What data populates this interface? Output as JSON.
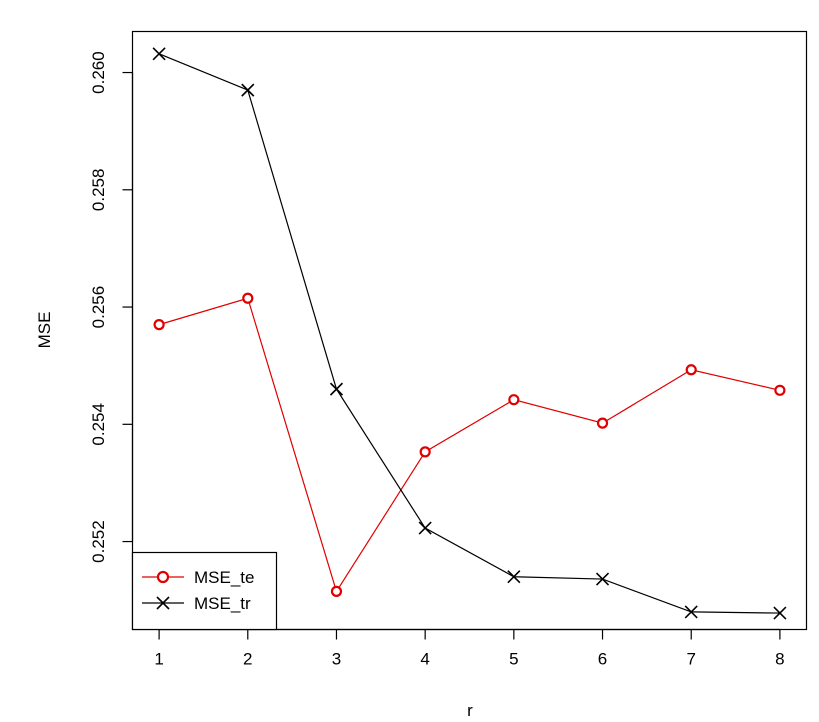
{
  "chart_data": {
    "type": "line",
    "title": "",
    "xlabel": "r",
    "ylabel": "MSE",
    "x": [
      1,
      2,
      3,
      4,
      5,
      6,
      7,
      8
    ],
    "x_ticks": [
      "1",
      "2",
      "3",
      "4",
      "5",
      "6",
      "7",
      "8"
    ],
    "y_ticks": [
      "0.252",
      "0.254",
      "0.256",
      "0.258",
      "0.260"
    ],
    "y_tick_values": [
      0.252,
      0.254,
      0.256,
      0.258,
      0.26
    ],
    "xlim": [
      0.7,
      8.3
    ],
    "ylim": [
      0.2505,
      0.2607
    ],
    "grid": false,
    "legend_position": "bottom-left",
    "series": [
      {
        "name": "MSE_te",
        "color": "#e00000",
        "marker": "circle",
        "values": [
          0.2557,
          0.25615,
          0.25115,
          0.25353,
          0.25442,
          0.25402,
          0.25493,
          0.25458
        ]
      },
      {
        "name": "MSE_tr",
        "color": "#000000",
        "marker": "x",
        "values": [
          0.26032,
          0.2597,
          0.2546,
          0.25223,
          0.2514,
          0.25136,
          0.2508,
          0.25078
        ]
      }
    ]
  }
}
